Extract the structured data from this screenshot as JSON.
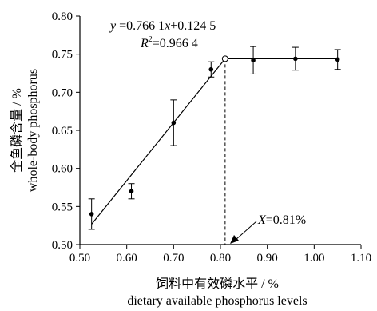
{
  "chart_data": {
    "type": "scatter",
    "xlabel_cn": "饲料中有效磷水平 / %",
    "xlabel_en": "dietary available phosphorus levels",
    "ylabel_cn": "全鱼磷含量 / %",
    "ylabel_en": "whole-body phosphorus",
    "xlim": [
      0.5,
      1.1
    ],
    "ylim": [
      0.5,
      0.8
    ],
    "xticks": [
      "0.50",
      "0.60",
      "0.70",
      "0.80",
      "0.90",
      "1.00",
      "1.10"
    ],
    "yticks": [
      "0.50",
      "0.55",
      "0.60",
      "0.65",
      "0.70",
      "0.75",
      "0.80"
    ],
    "series": [
      {
        "points": [
          {
            "x": 0.525,
            "y": 0.54,
            "err": 0.02
          },
          {
            "x": 0.61,
            "y": 0.57,
            "err": 0.01
          },
          {
            "x": 0.7,
            "y": 0.66,
            "err": 0.03
          },
          {
            "x": 0.78,
            "y": 0.73,
            "err": 0.01
          },
          {
            "x": 0.87,
            "y": 0.742,
            "err": 0.018
          },
          {
            "x": 0.96,
            "y": 0.744,
            "err": 0.015
          },
          {
            "x": 1.05,
            "y": 0.743,
            "err": 0.013
          }
        ]
      }
    ],
    "fit": {
      "linear": {
        "x_start": 0.525,
        "x_end": 0.81,
        "slope": 0.7661,
        "intercept": 0.1245
      },
      "plateau": {
        "x_start": 0.81,
        "x_end": 1.05,
        "y": 0.744
      },
      "breakpoint": {
        "x": 0.81,
        "y": 0.744
      }
    },
    "annotations": {
      "equation_y": "y",
      "equation_rest": " =0.766 1",
      "equation_x": "x",
      "equation_tail": "+0.124 5",
      "r2_label": "R",
      "r2_sup": "2",
      "r2_value": "=0.966 4",
      "breakpoint_var": "X",
      "breakpoint_value": "=0.81%"
    }
  }
}
